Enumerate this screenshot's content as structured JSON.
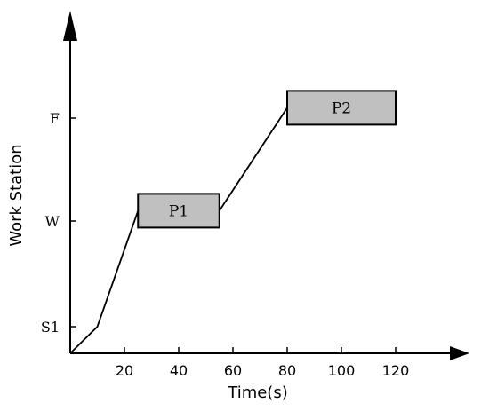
{
  "chart_data": {
    "type": "line",
    "xlabel": "Time(s)",
    "ylabel": "Work Station",
    "xlim": [
      0,
      142
    ],
    "x_ticks": [
      20,
      40,
      60,
      80,
      100,
      120
    ],
    "y_levels": [
      "S1",
      "W",
      "F"
    ],
    "y_level_values": {
      "S1": 1,
      "W": 2,
      "F": 3
    },
    "ylim": [
      0,
      4
    ],
    "series": [
      {
        "points": [
          {
            "x": 0,
            "y": 0.75
          },
          {
            "x": 10,
            "y": 1
          },
          {
            "x": 25,
            "y": 2.1
          },
          {
            "x": 55,
            "y": 2.1
          },
          {
            "x": 80,
            "y": 3.1
          },
          {
            "x": 120,
            "y": 3.1
          }
        ]
      }
    ],
    "boxes": [
      {
        "label": "P1",
        "x_start": 25,
        "x_end": 55,
        "y_level": "W",
        "y_center": 2.1
      },
      {
        "label": "P2",
        "x_start": 80,
        "x_end": 120,
        "y_level": "F",
        "y_center": 3.1
      }
    ],
    "colors": {
      "box_fill": "#c0c0c0",
      "line": "#000000"
    }
  }
}
